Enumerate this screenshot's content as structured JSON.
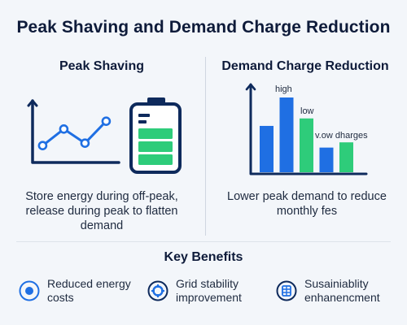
{
  "title": "Peak Shaving and Demand Charge Reduction",
  "peak_shaving": {
    "heading": "Peak Shaving",
    "line_points": [
      0.28,
      0.62,
      0.33,
      0.78
    ],
    "battery_bars": 3,
    "description": "Store energy during off-peak, release during peak to flatten demand"
  },
  "demand_charge": {
    "heading": "Demand Charge Reduction",
    "bars": [
      {
        "value": 0.62,
        "color": "#1f6fe3"
      },
      {
        "value": 1.0,
        "color": "#1f6fe3"
      },
      {
        "value": 0.72,
        "color": "#2ecc7a"
      },
      {
        "value": 0.33,
        "color": "#1f6fe3"
      },
      {
        "value": 0.4,
        "color": "#2ecc7a"
      }
    ],
    "label_high": "high",
    "label_low": "low",
    "label_charges": "v.ow dharges",
    "description": "Lower peak demand to reduce monthly fes"
  },
  "benefits": {
    "heading": "Key Benefits",
    "items": [
      {
        "label": "Reduced energy costs",
        "icon": "target-icon"
      },
      {
        "label": "Grid stability improvement",
        "icon": "grid-icon"
      },
      {
        "label": "Susainiablity enhanencment",
        "icon": "sustainability-icon"
      }
    ]
  },
  "colors": {
    "navy": "#0e2a5c",
    "blue": "#1f6fe3",
    "green": "#2ecc7a"
  }
}
